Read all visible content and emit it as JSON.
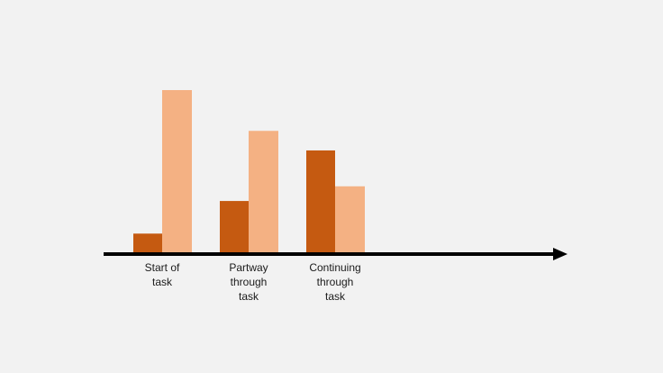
{
  "chart_data": {
    "type": "bar",
    "title": "",
    "xlabel": "",
    "ylabel": "",
    "categories": [
      "Start of\ntask",
      "Partway\nthrough\ntask",
      "Continuing\nthrough\ntask"
    ],
    "series": [
      {
        "values": [
          12,
          32,
          63
        ],
        "color": "#c55a11"
      },
      {
        "values": [
          100,
          75,
          41
        ],
        "color": "#f4b183"
      }
    ],
    "ylim": [
      0,
      100
    ],
    "y_axis_shown": false,
    "grid": false,
    "legend": "none",
    "x_axis_arrow": true,
    "axis_color": "#000000",
    "background": "#f2f2f2"
  }
}
